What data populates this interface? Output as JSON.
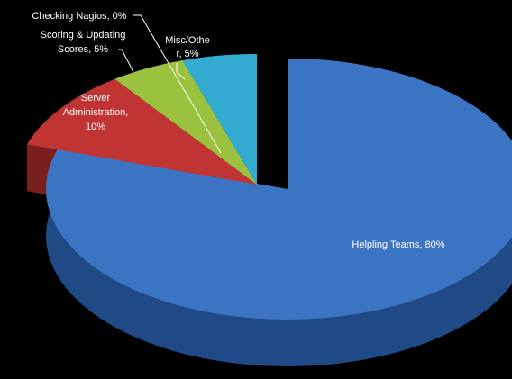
{
  "chart_data": {
    "type": "pie",
    "title": "",
    "slices": [
      {
        "label": "Helpling Teams",
        "value": 80,
        "display_line1": "Helpling Teams, 80%",
        "display_line2": "",
        "color": "#3c74c4",
        "dark": "#1f4a86"
      },
      {
        "label": "Checking Nagios",
        "value": 0,
        "display_line1": "Checking Nagios, 0%",
        "display_line2": "",
        "color": "#7a7a7a",
        "dark": "#555555"
      },
      {
        "label": "Server Administration",
        "value": 10,
        "display_line1": "Server",
        "display_line2": "Administration,",
        "display_line3": "10%",
        "color": "#c03434",
        "dark": "#7a1e1e"
      },
      {
        "label": "Scoring & Updating Scores",
        "value": 5,
        "display_line1": "Scoring & Updating",
        "display_line2": "Scores, 5%",
        "color": "#9bc23e",
        "dark": "#617a24"
      },
      {
        "label": "Misc/Other",
        "value": 5,
        "display_line1": "Misc/Othe",
        "display_line2": "r, 5%",
        "color": "#33abd0",
        "dark": "#1d6f88"
      }
    ],
    "legend": "none",
    "label_color": "#ffffff"
  }
}
